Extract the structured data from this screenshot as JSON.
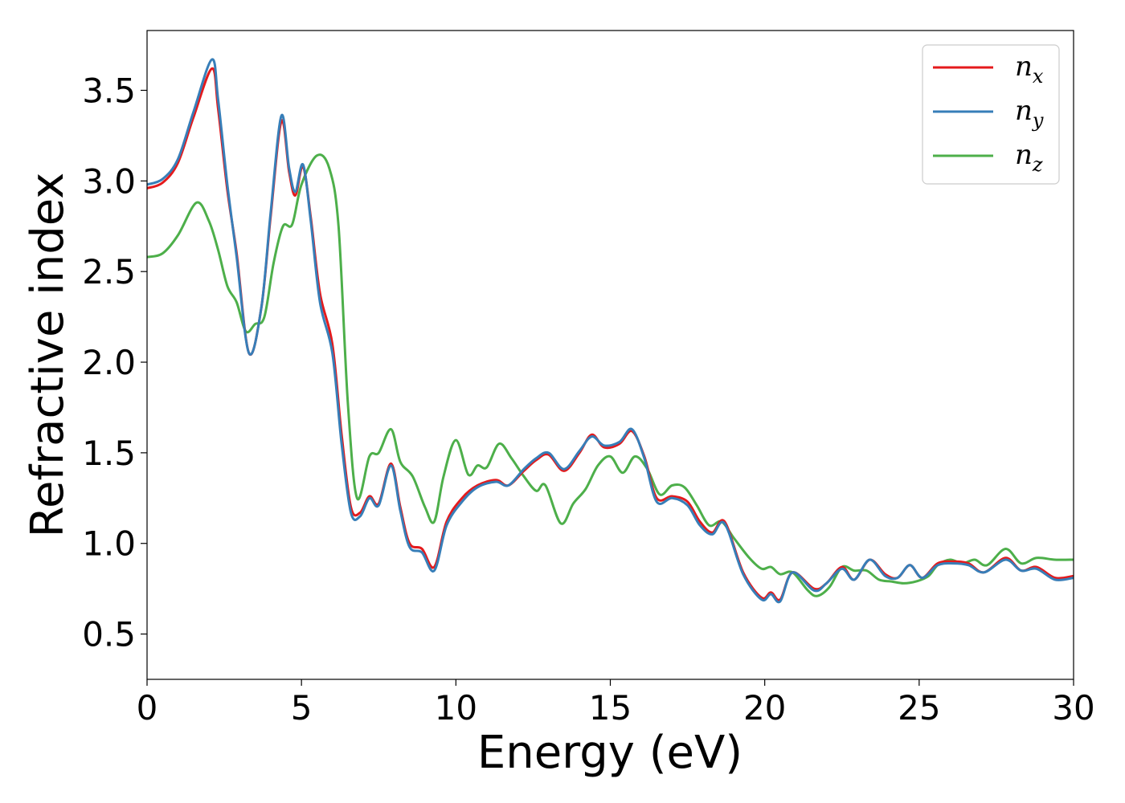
{
  "chart_data": {
    "type": "line",
    "xlabel": "Energy (eV)",
    "ylabel": "Refractive index",
    "xlim": [
      0,
      30
    ],
    "ylim": [
      0.25,
      3.83
    ],
    "grid": false,
    "legend_position": "top-right",
    "x_ticks": [
      "0",
      "5",
      "10",
      "15",
      "20",
      "25",
      "30"
    ],
    "y_ticks": [
      "0.5",
      "1.0",
      "1.5",
      "2.0",
      "2.5",
      "3.0",
      "3.5"
    ],
    "series": [
      {
        "name": "n",
        "subscript": "x",
        "color": "#e41a1c",
        "points": [
          [
            0,
            2.96
          ],
          [
            0.5,
            2.99
          ],
          [
            1.0,
            3.1
          ],
          [
            1.5,
            3.35
          ],
          [
            2.1,
            3.62
          ],
          [
            2.3,
            3.4
          ],
          [
            2.6,
            2.95
          ],
          [
            2.9,
            2.6
          ],
          [
            3.3,
            2.05
          ],
          [
            3.7,
            2.3
          ],
          [
            4.0,
            2.8
          ],
          [
            4.35,
            3.33
          ],
          [
            4.6,
            3.05
          ],
          [
            4.8,
            2.92
          ],
          [
            5.05,
            3.08
          ],
          [
            5.3,
            2.8
          ],
          [
            5.6,
            2.38
          ],
          [
            6.0,
            2.1
          ],
          [
            6.3,
            1.6
          ],
          [
            6.6,
            1.2
          ],
          [
            6.9,
            1.17
          ],
          [
            7.2,
            1.26
          ],
          [
            7.5,
            1.22
          ],
          [
            7.9,
            1.44
          ],
          [
            8.2,
            1.2
          ],
          [
            8.5,
            1.0
          ],
          [
            8.9,
            0.97
          ],
          [
            9.3,
            0.87
          ],
          [
            9.7,
            1.12
          ],
          [
            10.2,
            1.25
          ],
          [
            10.7,
            1.32
          ],
          [
            11.3,
            1.35
          ],
          [
            11.7,
            1.32
          ],
          [
            12.2,
            1.4
          ],
          [
            12.6,
            1.46
          ],
          [
            13.0,
            1.49
          ],
          [
            13.5,
            1.4
          ],
          [
            14.0,
            1.5
          ],
          [
            14.4,
            1.6
          ],
          [
            14.8,
            1.53
          ],
          [
            15.3,
            1.55
          ],
          [
            15.7,
            1.62
          ],
          [
            16.1,
            1.48
          ],
          [
            16.5,
            1.25
          ],
          [
            17.0,
            1.26
          ],
          [
            17.5,
            1.23
          ],
          [
            17.9,
            1.12
          ],
          [
            18.3,
            1.06
          ],
          [
            18.7,
            1.12
          ],
          [
            19.3,
            0.84
          ],
          [
            19.9,
            0.7
          ],
          [
            20.2,
            0.73
          ],
          [
            20.5,
            0.69
          ],
          [
            20.9,
            0.84
          ],
          [
            21.6,
            0.75
          ],
          [
            22.0,
            0.78
          ],
          [
            22.5,
            0.87
          ],
          [
            22.9,
            0.8
          ],
          [
            23.4,
            0.91
          ],
          [
            23.9,
            0.83
          ],
          [
            24.3,
            0.81
          ],
          [
            24.7,
            0.88
          ],
          [
            25.1,
            0.81
          ],
          [
            25.6,
            0.89
          ],
          [
            26.1,
            0.9
          ],
          [
            26.6,
            0.89
          ],
          [
            27.1,
            0.84
          ],
          [
            27.8,
            0.92
          ],
          [
            28.3,
            0.85
          ],
          [
            28.8,
            0.87
          ],
          [
            29.4,
            0.81
          ],
          [
            30.0,
            0.82
          ]
        ]
      },
      {
        "name": "n",
        "subscript": "y",
        "color": "#377eb8",
        "points": [
          [
            0,
            2.98
          ],
          [
            0.5,
            3.01
          ],
          [
            1.0,
            3.12
          ],
          [
            1.5,
            3.38
          ],
          [
            2.1,
            3.67
          ],
          [
            2.3,
            3.45
          ],
          [
            2.6,
            2.98
          ],
          [
            2.9,
            2.58
          ],
          [
            3.3,
            2.05
          ],
          [
            3.7,
            2.3
          ],
          [
            4.0,
            2.82
          ],
          [
            4.35,
            3.36
          ],
          [
            4.6,
            3.07
          ],
          [
            4.8,
            2.94
          ],
          [
            5.05,
            3.09
          ],
          [
            5.3,
            2.78
          ],
          [
            5.6,
            2.33
          ],
          [
            6.0,
            2.05
          ],
          [
            6.3,
            1.55
          ],
          [
            6.6,
            1.17
          ],
          [
            6.9,
            1.15
          ],
          [
            7.2,
            1.25
          ],
          [
            7.5,
            1.21
          ],
          [
            7.9,
            1.43
          ],
          [
            8.2,
            1.18
          ],
          [
            8.5,
            0.98
          ],
          [
            8.9,
            0.95
          ],
          [
            9.3,
            0.85
          ],
          [
            9.7,
            1.1
          ],
          [
            10.2,
            1.23
          ],
          [
            10.7,
            1.31
          ],
          [
            11.3,
            1.34
          ],
          [
            11.7,
            1.32
          ],
          [
            12.2,
            1.41
          ],
          [
            12.6,
            1.47
          ],
          [
            13.0,
            1.5
          ],
          [
            13.5,
            1.41
          ],
          [
            14.0,
            1.51
          ],
          [
            14.4,
            1.59
          ],
          [
            14.8,
            1.54
          ],
          [
            15.3,
            1.56
          ],
          [
            15.7,
            1.63
          ],
          [
            16.1,
            1.47
          ],
          [
            16.5,
            1.23
          ],
          [
            17.0,
            1.25
          ],
          [
            17.5,
            1.21
          ],
          [
            17.9,
            1.1
          ],
          [
            18.3,
            1.05
          ],
          [
            18.7,
            1.11
          ],
          [
            19.3,
            0.83
          ],
          [
            19.9,
            0.69
          ],
          [
            20.2,
            0.72
          ],
          [
            20.5,
            0.68
          ],
          [
            20.9,
            0.84
          ],
          [
            21.6,
            0.74
          ],
          [
            22.0,
            0.78
          ],
          [
            22.5,
            0.86
          ],
          [
            22.9,
            0.8
          ],
          [
            23.4,
            0.91
          ],
          [
            23.9,
            0.82
          ],
          [
            24.3,
            0.81
          ],
          [
            24.7,
            0.88
          ],
          [
            25.1,
            0.81
          ],
          [
            25.6,
            0.88
          ],
          [
            26.1,
            0.89
          ],
          [
            26.6,
            0.88
          ],
          [
            27.1,
            0.84
          ],
          [
            27.8,
            0.91
          ],
          [
            28.3,
            0.85
          ],
          [
            28.8,
            0.86
          ],
          [
            29.4,
            0.8
          ],
          [
            30.0,
            0.81
          ]
        ]
      },
      {
        "name": "n",
        "subscript": "z",
        "color": "#4daf4a",
        "points": [
          [
            0,
            2.58
          ],
          [
            0.5,
            2.6
          ],
          [
            1.0,
            2.7
          ],
          [
            1.6,
            2.88
          ],
          [
            2.0,
            2.78
          ],
          [
            2.3,
            2.62
          ],
          [
            2.6,
            2.42
          ],
          [
            2.9,
            2.33
          ],
          [
            3.2,
            2.17
          ],
          [
            3.5,
            2.21
          ],
          [
            3.8,
            2.25
          ],
          [
            4.1,
            2.55
          ],
          [
            4.4,
            2.75
          ],
          [
            4.7,
            2.76
          ],
          [
            5.0,
            2.98
          ],
          [
            5.5,
            3.14
          ],
          [
            5.9,
            3.07
          ],
          [
            6.2,
            2.75
          ],
          [
            6.5,
            1.78
          ],
          [
            6.8,
            1.25
          ],
          [
            7.2,
            1.48
          ],
          [
            7.5,
            1.5
          ],
          [
            7.9,
            1.63
          ],
          [
            8.2,
            1.45
          ],
          [
            8.6,
            1.37
          ],
          [
            9.0,
            1.2
          ],
          [
            9.3,
            1.12
          ],
          [
            9.6,
            1.37
          ],
          [
            10.0,
            1.57
          ],
          [
            10.4,
            1.38
          ],
          [
            10.7,
            1.43
          ],
          [
            11.0,
            1.42
          ],
          [
            11.4,
            1.55
          ],
          [
            11.8,
            1.47
          ],
          [
            12.2,
            1.37
          ],
          [
            12.6,
            1.29
          ],
          [
            12.9,
            1.32
          ],
          [
            13.4,
            1.11
          ],
          [
            13.8,
            1.22
          ],
          [
            14.2,
            1.3
          ],
          [
            14.6,
            1.43
          ],
          [
            15.0,
            1.48
          ],
          [
            15.4,
            1.39
          ],
          [
            15.8,
            1.48
          ],
          [
            16.2,
            1.41
          ],
          [
            16.6,
            1.27
          ],
          [
            17.0,
            1.32
          ],
          [
            17.4,
            1.31
          ],
          [
            17.8,
            1.21
          ],
          [
            18.2,
            1.1
          ],
          [
            18.6,
            1.12
          ],
          [
            19.0,
            1.03
          ],
          [
            19.5,
            0.92
          ],
          [
            19.9,
            0.86
          ],
          [
            20.2,
            0.87
          ],
          [
            20.5,
            0.83
          ],
          [
            20.9,
            0.84
          ],
          [
            21.4,
            0.74
          ],
          [
            21.7,
            0.71
          ],
          [
            22.1,
            0.76
          ],
          [
            22.5,
            0.87
          ],
          [
            22.9,
            0.85
          ],
          [
            23.3,
            0.85
          ],
          [
            23.7,
            0.8
          ],
          [
            24.1,
            0.79
          ],
          [
            24.5,
            0.78
          ],
          [
            24.9,
            0.79
          ],
          [
            25.3,
            0.82
          ],
          [
            25.6,
            0.88
          ],
          [
            26.0,
            0.91
          ],
          [
            26.4,
            0.89
          ],
          [
            26.8,
            0.91
          ],
          [
            27.2,
            0.88
          ],
          [
            27.8,
            0.97
          ],
          [
            28.3,
            0.89
          ],
          [
            28.8,
            0.92
          ],
          [
            29.4,
            0.91
          ],
          [
            30.0,
            0.91
          ]
        ]
      }
    ]
  }
}
